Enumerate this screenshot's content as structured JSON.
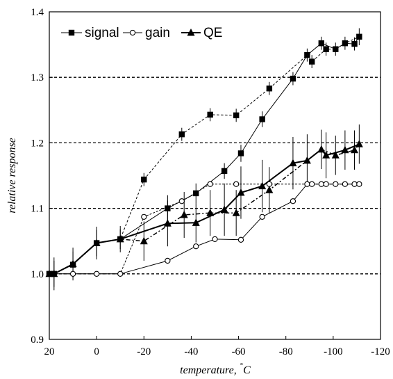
{
  "chart_data": {
    "type": "line",
    "xlabel": "temperature,",
    "xlabel_unit": "°C",
    "ylabel": "relative response",
    "xlim": [
      20,
      -120
    ],
    "ylim": [
      0.9,
      1.4
    ],
    "x_ticks": [
      "20",
      "0",
      "-20",
      "-40",
      "-60",
      "-80",
      "-100",
      "-120"
    ],
    "y_ticks": [
      "0.9",
      "1.0",
      "1.1",
      "1.2",
      "1.3",
      "1.4"
    ],
    "x_tick_values": [
      20,
      0,
      -20,
      -40,
      -60,
      -80,
      -100,
      -120
    ],
    "y_tick_values": [
      0.9,
      1.0,
      1.1,
      1.2,
      1.3,
      1.4
    ],
    "gridlines_y": [
      1.0,
      1.1,
      1.2,
      1.3
    ],
    "legend_position": "top-left",
    "series": [
      {
        "name": "signal",
        "marker": "square",
        "points": [
          {
            "x": 20,
            "y": 1.0,
            "err": 0.02
          },
          {
            "x": 18,
            "y": 1.0,
            "err": 0.02
          },
          {
            "x": 10,
            "y": 1.014,
            "err": 0.02
          },
          {
            "x": 0,
            "y": 1.047,
            "err": 0.02
          },
          {
            "x": -10,
            "y": 1.053,
            "err": 0.015
          },
          {
            "x": -20,
            "y": 1.144,
            "err": 0.01
          },
          {
            "x": -30,
            "y": 1.1,
            "err": 0.02
          },
          {
            "x": -36,
            "y": 1.213,
            "err": 0.01
          },
          {
            "x": -42,
            "y": 1.123,
            "err": 0.015
          },
          {
            "x": -48,
            "y": 1.243,
            "err": 0.01
          },
          {
            "x": -54,
            "y": 1.157,
            "err": 0.012
          },
          {
            "x": -59,
            "y": 1.242,
            "err": 0.01
          },
          {
            "x": -61,
            "y": 1.184,
            "err": 0.013
          },
          {
            "x": -70,
            "y": 1.236,
            "err": 0.012
          },
          {
            "x": -73,
            "y": 1.283,
            "err": 0.01
          },
          {
            "x": -83,
            "y": 1.298,
            "err": 0.01
          },
          {
            "x": -89,
            "y": 1.334,
            "err": 0.01
          },
          {
            "x": -91,
            "y": 1.324,
            "err": 0.01
          },
          {
            "x": -95,
            "y": 1.352,
            "err": 0.01
          },
          {
            "x": -97,
            "y": 1.343,
            "err": 0.01
          },
          {
            "x": -101,
            "y": 1.343,
            "err": 0.01
          },
          {
            "x": -105,
            "y": 1.352,
            "err": 0.01
          },
          {
            "x": -109,
            "y": 1.351,
            "err": 0.01
          },
          {
            "x": -111,
            "y": 1.362,
            "err": 0.013
          }
        ]
      },
      {
        "name": "gain",
        "marker": "circle",
        "points": [
          {
            "x": 20,
            "y": 1.0
          },
          {
            "x": 18,
            "y": 1.0
          },
          {
            "x": 10,
            "y": 1.0
          },
          {
            "x": 0,
            "y": 1.0
          },
          {
            "x": -10,
            "y": 1.0
          },
          {
            "x": -20,
            "y": 1.087
          },
          {
            "x": -30,
            "y": 1.02
          },
          {
            "x": -36,
            "y": 1.111
          },
          {
            "x": -42,
            "y": 1.042
          },
          {
            "x": -48,
            "y": 1.137
          },
          {
            "x": -50,
            "y": 1.053
          },
          {
            "x": -59,
            "y": 1.137
          },
          {
            "x": -61,
            "y": 1.052
          },
          {
            "x": -70,
            "y": 1.087
          },
          {
            "x": -73,
            "y": 1.137
          },
          {
            "x": -83,
            "y": 1.111
          },
          {
            "x": -89,
            "y": 1.137
          },
          {
            "x": -91,
            "y": 1.137
          },
          {
            "x": -95,
            "y": 1.137
          },
          {
            "x": -97,
            "y": 1.137
          },
          {
            "x": -101,
            "y": 1.137
          },
          {
            "x": -105,
            "y": 1.137
          },
          {
            "x": -109,
            "y": 1.137
          },
          {
            "x": -111,
            "y": 1.137
          }
        ]
      },
      {
        "name": "QE",
        "marker": "triangle",
        "points": [
          {
            "x": 20,
            "y": 1.0,
            "err": 0.03
          },
          {
            "x": 18,
            "y": 1.0,
            "err": 0.025
          },
          {
            "x": 10,
            "y": 1.015,
            "err": 0.025
          },
          {
            "x": 0,
            "y": 1.047,
            "err": 0.025
          },
          {
            "x": -10,
            "y": 1.053,
            "err": 0.02
          },
          {
            "x": -20,
            "y": 1.05,
            "err": 0.03
          },
          {
            "x": -30,
            "y": 1.077,
            "err": 0.035
          },
          {
            "x": -37,
            "y": 1.09,
            "err": 0.035
          },
          {
            "x": -42,
            "y": 1.078,
            "err": 0.03
          },
          {
            "x": -48,
            "y": 1.093,
            "err": 0.035
          },
          {
            "x": -54,
            "y": 1.098,
            "err": 0.04
          },
          {
            "x": -59,
            "y": 1.093,
            "err": 0.035
          },
          {
            "x": -61,
            "y": 1.124,
            "err": 0.04
          },
          {
            "x": -70,
            "y": 1.134,
            "err": 0.04
          },
          {
            "x": -73,
            "y": 1.128,
            "err": 0.035
          },
          {
            "x": -83,
            "y": 1.169,
            "err": 0.04
          },
          {
            "x": -89,
            "y": 1.173,
            "err": 0.04
          },
          {
            "x": -95,
            "y": 1.19,
            "err": 0.03
          },
          {
            "x": -97,
            "y": 1.181,
            "err": 0.035
          },
          {
            "x": -101,
            "y": 1.181,
            "err": 0.03
          },
          {
            "x": -105,
            "y": 1.189,
            "err": 0.03
          },
          {
            "x": -109,
            "y": 1.189,
            "err": 0.03
          },
          {
            "x": -111,
            "y": 1.198,
            "err": 0.03
          }
        ]
      }
    ]
  }
}
